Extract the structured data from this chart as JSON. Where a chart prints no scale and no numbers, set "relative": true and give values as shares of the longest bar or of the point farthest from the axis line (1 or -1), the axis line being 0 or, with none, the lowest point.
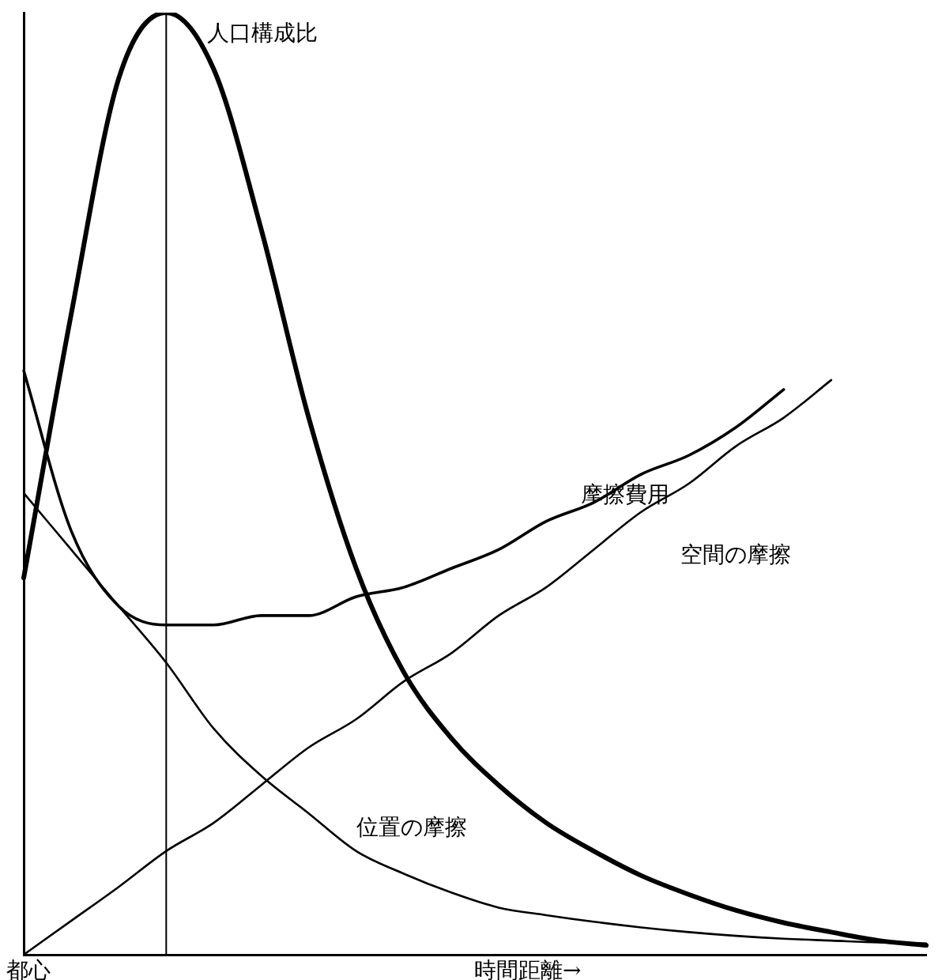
{
  "chart_data": {
    "type": "line",
    "relative": true,
    "xlabel": "時間距離→",
    "annotations": [
      "都心"
    ],
    "categories": [
      null,
      null,
      null,
      null,
      null,
      null,
      null,
      null,
      null,
      null,
      null,
      null,
      null,
      null,
      null,
      null,
      null,
      null,
      null,
      null
    ],
    "series": [
      {
        "name": "人口構成比",
        "color": "#000000",
        "values": [
          0.4,
          0.68,
          0.93,
          1,
          0.94,
          0.77,
          0.57,
          0.41,
          0.3,
          0.23,
          0.18,
          0.14,
          0.11,
          0.084,
          0.064,
          0.047,
          0.034,
          0.024,
          0.015,
          0.01
        ]
      },
      {
        "name": "摩擦費用",
        "color": "#000000",
        "values": [
          0.62,
          0.45,
          0.37,
          0.35,
          0.35,
          0.36,
          0.36,
          0.38,
          0.39,
          0.41,
          0.43,
          0.46,
          0.48,
          0.51,
          0.53,
          0.56,
          0.6,
          null,
          null,
          null
        ]
      },
      {
        "name": "空間の摩擦",
        "color": "#000000",
        "values": [
          0,
          0.036,
          0.072,
          0.11,
          0.14,
          0.18,
          0.22,
          0.25,
          0.29,
          0.32,
          0.36,
          0.39,
          0.43,
          0.47,
          0.5,
          0.54,
          0.57,
          0.61,
          null,
          null
        ]
      },
      {
        "name": "位置の摩擦",
        "color": "#000000",
        "values": [
          0.49,
          0.43,
          0.37,
          0.31,
          0.24,
          0.19,
          0.15,
          0.11,
          0.086,
          0.066,
          0.05,
          0.042,
          0.035,
          0.029,
          0.024,
          0.02,
          0.017,
          0.015,
          0.013,
          0.012
        ]
      }
    ],
    "legend": false,
    "grid": false,
    "tick_labels": false,
    "marker": "none",
    "line_style": "solid"
  }
}
